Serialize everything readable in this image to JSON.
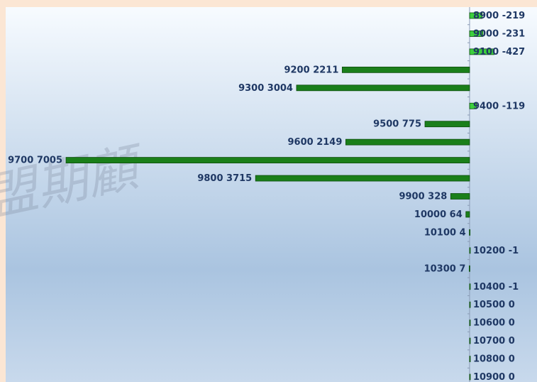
{
  "chart_data": {
    "type": "bar",
    "orientation": "horizontal",
    "watermark": "盟期顧",
    "categories": [
      "8900",
      "9000",
      "9100",
      "9200",
      "9300",
      "9400",
      "9500",
      "9600",
      "9700",
      "9800",
      "9900",
      "10000",
      "10100",
      "10200",
      "10300",
      "10400",
      "10500",
      "10600",
      "10700",
      "10800",
      "10900"
    ],
    "values": [
      -219,
      -231,
      -427,
      2211,
      3004,
      -119,
      775,
      2149,
      7005,
      3715,
      328,
      64,
      4,
      -1,
      7,
      -1,
      0,
      0,
      0,
      0,
      0
    ],
    "color": "#1a7f1a",
    "negative_color": "#3ccf3c",
    "xlim": [
      8150,
      -1170
    ]
  }
}
